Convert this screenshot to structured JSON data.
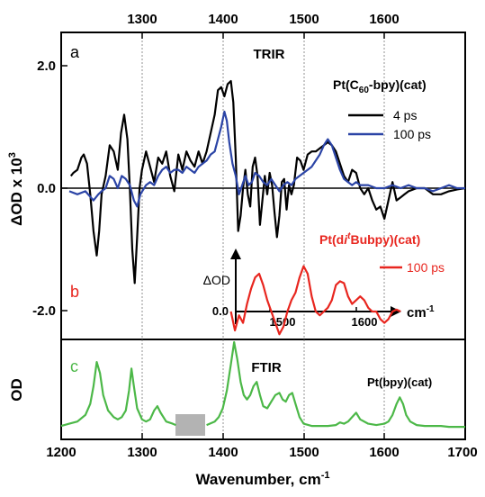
{
  "colors": {
    "black": "#000000",
    "blue": "#2b44a6",
    "red": "#e8261f",
    "green": "#4cb848",
    "gap": "#b3b3b3"
  },
  "chart_data": [
    {
      "panel": "a",
      "type": "line",
      "title": "TRIR",
      "compound_label": "Pt(C60-bpy)(cat)",
      "ylabel": "ΔOD x 10^3",
      "xlim": [
        1200,
        1700
      ],
      "ylim": [
        -2.35,
        2.35
      ],
      "top_ticks": [
        "1300",
        "1400",
        "1500",
        "1600"
      ],
      "y_ticks": [
        "2.0",
        "0.0",
        "-2.0"
      ],
      "grid": "dotted vertical lines at 1300, 1400, 1500, 1600",
      "legend_position": "top-right",
      "series": [
        {
          "name": "4 ps",
          "color": "#000000",
          "x": [
            1212,
            1215,
            1220,
            1225,
            1228,
            1232,
            1236,
            1240,
            1244,
            1247,
            1250,
            1255,
            1260,
            1265,
            1270,
            1274,
            1278,
            1282,
            1285,
            1288,
            1291,
            1294,
            1297,
            1300,
            1305,
            1310,
            1315,
            1320,
            1325,
            1330,
            1335,
            1340,
            1345,
            1350,
            1355,
            1360,
            1365,
            1370,
            1375,
            1380,
            1385,
            1390,
            1394,
            1398,
            1402,
            1406,
            1410,
            1413,
            1416,
            1419,
            1422,
            1425,
            1428,
            1431,
            1434,
            1437,
            1440,
            1443,
            1446,
            1449,
            1452,
            1455,
            1458,
            1461,
            1464,
            1467,
            1470,
            1473,
            1476,
            1479,
            1482,
            1485,
            1488,
            1492,
            1496,
            1500,
            1505,
            1510,
            1515,
            1520,
            1525,
            1530,
            1535,
            1540,
            1545,
            1550,
            1555,
            1560,
            1565,
            1570,
            1575,
            1580,
            1585,
            1590,
            1595,
            1600,
            1605,
            1610,
            1615,
            1620,
            1625,
            1630,
            1640,
            1650,
            1660,
            1670,
            1680,
            1690,
            1700
          ],
          "y": [
            0.2,
            0.25,
            0.3,
            0.5,
            0.55,
            0.4,
            -0.1,
            -0.7,
            -1.1,
            -0.7,
            -0.1,
            0.2,
            0.7,
            0.6,
            0.3,
            0.9,
            1.2,
            0.8,
            0.0,
            -1.0,
            -1.55,
            -0.8,
            0.0,
            0.3,
            0.6,
            0.35,
            0.1,
            0.5,
            0.4,
            0.6,
            0.2,
            -0.05,
            0.55,
            0.3,
            0.6,
            0.45,
            0.35,
            0.6,
            0.4,
            0.6,
            0.9,
            1.2,
            1.6,
            1.65,
            1.5,
            1.7,
            1.75,
            1.4,
            0.5,
            -0.7,
            -0.45,
            0.0,
            0.3,
            -0.1,
            -0.3,
            0.35,
            0.5,
            0.2,
            -0.6,
            -0.2,
            0.2,
            -0.1,
            0.25,
            0.05,
            -0.4,
            -0.8,
            -0.45,
            0.1,
            0.15,
            -0.35,
            0.05,
            -0.1,
            0.05,
            0.5,
            0.45,
            0.3,
            0.55,
            0.6,
            0.6,
            0.65,
            0.7,
            0.75,
            0.7,
            0.6,
            0.4,
            0.2,
            0.1,
            0.3,
            0.25,
            0.0,
            -0.1,
            0.0,
            -0.2,
            -0.35,
            -0.3,
            -0.5,
            -0.2,
            0.1,
            -0.2,
            -0.15,
            -0.1,
            -0.05,
            0.0,
            0.0,
            -0.1,
            -0.1,
            -0.05,
            -0.02,
            0.0
          ]
        },
        {
          "name": "100 ps",
          "color": "#2b44a6",
          "x": [
            1210,
            1220,
            1230,
            1240,
            1246,
            1250,
            1255,
            1260,
            1265,
            1270,
            1275,
            1280,
            1285,
            1290,
            1294,
            1298,
            1305,
            1310,
            1315,
            1320,
            1325,
            1330,
            1335,
            1340,
            1345,
            1350,
            1355,
            1360,
            1365,
            1370,
            1375,
            1380,
            1385,
            1390,
            1394,
            1398,
            1402,
            1405,
            1408,
            1412,
            1416,
            1420,
            1424,
            1428,
            1432,
            1436,
            1440,
            1445,
            1450,
            1455,
            1460,
            1465,
            1470,
            1475,
            1480,
            1485,
            1490,
            1495,
            1500,
            1505,
            1510,
            1515,
            1520,
            1525,
            1530,
            1535,
            1540,
            1545,
            1550,
            1555,
            1560,
            1565,
            1570,
            1580,
            1590,
            1600,
            1610,
            1620,
            1630,
            1640,
            1650,
            1660,
            1670,
            1680,
            1690,
            1700
          ],
          "y": [
            -0.05,
            -0.1,
            -0.05,
            -0.2,
            -0.1,
            -0.05,
            0.0,
            0.2,
            0.15,
            0.0,
            0.2,
            0.15,
            0.05,
            -0.2,
            -0.3,
            -0.1,
            0.05,
            0.1,
            0.05,
            0.2,
            0.3,
            0.35,
            0.25,
            0.3,
            0.3,
            0.25,
            0.35,
            0.3,
            0.25,
            0.35,
            0.4,
            0.45,
            0.55,
            0.6,
            0.8,
            1.0,
            1.25,
            1.1,
            0.75,
            0.4,
            0.2,
            -0.1,
            0.05,
            0.2,
            0.05,
            0.1,
            0.25,
            0.2,
            0.1,
            0.05,
            0.15,
            0.05,
            -0.05,
            0.05,
            0.1,
            0.05,
            0.15,
            0.2,
            0.25,
            0.3,
            0.35,
            0.45,
            0.55,
            0.7,
            0.8,
            0.7,
            0.5,
            0.3,
            0.15,
            0.1,
            0.05,
            0.1,
            0.05,
            0.05,
            0.0,
            0.0,
            0.05,
            0.0,
            0.05,
            0.0,
            0.0,
            -0.05,
            0.0,
            0.05,
            0.0,
            0.0
          ]
        }
      ]
    },
    {
      "panel": "b",
      "type": "line",
      "compound_label": "Pt(di-tBubpy)(cat)",
      "inset_ylabel": "ΔOD",
      "inset_xlabel": "cm-1",
      "inset_x_ticks": [
        "1500",
        "1600"
      ],
      "inset_y_tick": "0.0",
      "y_tick": "-2.0",
      "series": [
        {
          "name": "100 ps",
          "color": "#e8261f",
          "x": [
            1410,
            1415,
            1420,
            1425,
            1430,
            1435,
            1440,
            1445,
            1450,
            1455,
            1460,
            1465,
            1470,
            1475,
            1480,
            1485,
            1490,
            1495,
            1500,
            1505,
            1510,
            1515,
            1520,
            1525,
            1530,
            1535,
            1540,
            1545,
            1550,
            1555,
            1560,
            1565,
            1570,
            1575,
            1580,
            1585,
            1590,
            1595,
            1600,
            1605,
            1610,
            1615,
            1620
          ],
          "y": [
            0.0,
            -0.5,
            -0.1,
            -0.3,
            0.2,
            0.6,
            0.9,
            1.0,
            0.7,
            0.3,
            0.0,
            -0.3,
            -0.6,
            -0.4,
            0.0,
            0.3,
            0.5,
            0.9,
            1.2,
            1.0,
            0.4,
            0.0,
            -0.1,
            0.0,
            0.1,
            0.3,
            0.7,
            0.8,
            0.75,
            0.4,
            0.2,
            0.3,
            0.4,
            0.3,
            0.1,
            0.0,
            0.0,
            -0.2,
            -0.3,
            -0.2,
            0.0,
            0.05,
            0.0
          ]
        }
      ]
    },
    {
      "panel": "c",
      "type": "line",
      "title": "FTIR",
      "compound_label": "Pt(bpy)(cat)",
      "ylabel": "OD",
      "xlabel": "Wavenumber, cm-1",
      "xlim": [
        1200,
        1700
      ],
      "x_ticks": [
        "1200",
        "1300",
        "1400",
        "1500",
        "1600",
        "1700"
      ],
      "gap_region": [
        1343,
        1378
      ],
      "series": [
        {
          "name": "FTIR",
          "color": "#4cb848",
          "x": [
            1200,
            1210,
            1220,
            1230,
            1236,
            1240,
            1244,
            1248,
            1252,
            1258,
            1265,
            1270,
            1275,
            1280,
            1284,
            1287,
            1290,
            1294,
            1300,
            1305,
            1310,
            1315,
            1319,
            1323,
            1330,
            1338,
            1342,
            1380,
            1390,
            1395,
            1400,
            1405,
            1410,
            1414,
            1418,
            1422,
            1426,
            1430,
            1434,
            1438,
            1442,
            1446,
            1450,
            1455,
            1460,
            1465,
            1470,
            1474,
            1478,
            1482,
            1486,
            1490,
            1495,
            1500,
            1510,
            1520,
            1530,
            1540,
            1545,
            1550,
            1555,
            1560,
            1565,
            1570,
            1580,
            1590,
            1600,
            1605,
            1610,
            1615,
            1619,
            1623,
            1627,
            1632,
            1640,
            1650,
            1660,
            1670,
            1680,
            1690,
            1700
          ],
          "y": [
            0.1,
            0.15,
            0.2,
            0.35,
            0.6,
            1.0,
            1.55,
            1.3,
            0.8,
            0.45,
            0.3,
            0.25,
            0.3,
            0.45,
            0.9,
            1.4,
            1.0,
            0.5,
            0.25,
            0.2,
            0.25,
            0.45,
            0.55,
            0.4,
            0.2,
            0.15,
            0.12,
            0.12,
            0.2,
            0.3,
            0.5,
            0.9,
            1.5,
            2.0,
            1.6,
            1.1,
            0.8,
            0.7,
            0.8,
            1.0,
            1.1,
            0.8,
            0.55,
            0.5,
            0.65,
            0.8,
            0.85,
            0.7,
            0.65,
            0.8,
            0.85,
            0.6,
            0.3,
            0.15,
            0.1,
            0.1,
            0.1,
            0.12,
            0.18,
            0.15,
            0.2,
            0.3,
            0.4,
            0.25,
            0.15,
            0.12,
            0.15,
            0.2,
            0.35,
            0.6,
            0.75,
            0.6,
            0.35,
            0.2,
            0.12,
            0.1,
            0.1,
            0.1,
            0.08,
            0.08,
            0.08
          ]
        }
      ]
    }
  ],
  "labels": {
    "panel_a": "a",
    "panel_b": "b",
    "panel_c": "c",
    "trir": "TRIR",
    "ftir": "FTIR",
    "compound_a_pre": "Pt(C",
    "compound_a_sub": "60",
    "compound_a_post": "-bpy)(cat)",
    "compound_b_pre": "Pt(d",
    "compound_b_i": "i",
    "compound_b_sup": "t",
    "compound_b_bu": "Bu",
    "compound_b_post": "bpy)(cat)",
    "compound_c": "Pt(bpy)(cat)",
    "legend_4ps": "4 ps",
    "legend_100ps": "100 ps",
    "legend_red": "100 ps",
    "ylabel_a_main": "ΔOD x 10",
    "ylabel_a_sup": "3",
    "ylabel_c": "OD",
    "xlabel_main": "Wavenumber, cm",
    "xlabel_sup": "-1",
    "inset_ylabel": "ΔOD",
    "inset_xlabel_main": "cm",
    "inset_xlabel_sup": "-1",
    "inset_tick_0": "0.0",
    "inset_tick_1500": "1500",
    "inset_tick_1600": "1600",
    "ytick_2": "2.0",
    "ytick_0": "0.0",
    "ytick_m2": "-2.0",
    "top_1300": "1300",
    "top_1400": "1400",
    "top_1500": "1500",
    "top_1600": "1600",
    "bot_1200": "1200",
    "bot_1300": "1300",
    "bot_1400": "1400",
    "bot_1500": "1500",
    "bot_1600": "1600",
    "bot_1700": "1700"
  }
}
